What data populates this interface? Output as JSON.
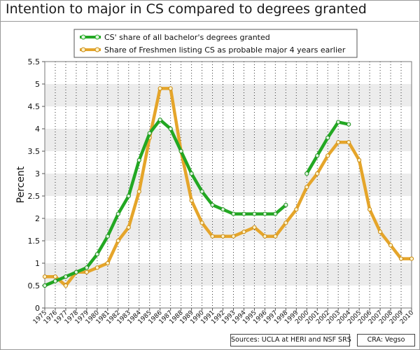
{
  "title": "Intention to major in CS compared to degrees granted",
  "footer": {
    "sources": "Sources: UCLA at HERI and NSF SRS",
    "credit": "CRA: Vegso"
  },
  "colors": {
    "degrees": "#22a822",
    "freshmen": "#e5a52a",
    "band": "#ececec"
  },
  "chart_data": {
    "type": "line",
    "title": "Intention to major in CS compared to degrees granted",
    "xlabel": "",
    "ylabel": "Percent",
    "ylim": [
      0,
      5.5
    ],
    "yticks": [
      "0",
      "0.5",
      "1",
      "1.5",
      "2",
      "2.5",
      "3",
      "3.5",
      "4",
      "4.5",
      "5",
      "5.5"
    ],
    "categories": [
      "1975",
      "1976",
      "1977",
      "1978",
      "1979",
      "1980",
      "1981",
      "1982",
      "1983",
      "1984",
      "1985",
      "1986",
      "1987",
      "1988",
      "1989",
      "1990",
      "1991",
      "1992",
      "1993",
      "1994",
      "1995",
      "1996",
      "1997",
      "1998",
      "1999",
      "2000",
      "2001",
      "2002",
      "2003",
      "2004",
      "2005",
      "2006",
      "2007",
      "2008",
      "2009",
      "2010"
    ],
    "legend_position": "top-center",
    "grid": "alternating horizontal bands with dotted vertical gridlines",
    "series": [
      {
        "name": "CS' share of all bachelor's degrees granted",
        "values": [
          0.5,
          0.6,
          0.7,
          0.8,
          0.9,
          1.2,
          1.6,
          2.1,
          2.5,
          3.3,
          3.9,
          4.2,
          4.0,
          3.5,
          3.0,
          2.6,
          2.3,
          2.2,
          2.1,
          2.1,
          2.1,
          2.1,
          2.1,
          2.3,
          null,
          3.0,
          3.4,
          3.8,
          4.15,
          4.1,
          null,
          null,
          null,
          null,
          null,
          null
        ]
      },
      {
        "name": "Share of Freshmen listing CS as probable major 4 years earlier",
        "values": [
          0.7,
          0.7,
          0.5,
          0.8,
          0.8,
          0.9,
          1.0,
          1.5,
          1.8,
          2.6,
          3.8,
          4.9,
          4.9,
          3.5,
          2.4,
          1.9,
          1.6,
          1.6,
          1.6,
          1.7,
          1.8,
          1.6,
          1.6,
          1.9,
          2.2,
          2.7,
          3.0,
          3.4,
          3.7,
          3.7,
          3.3,
          2.2,
          1.7,
          1.4,
          1.1,
          1.1
        ]
      }
    ]
  }
}
